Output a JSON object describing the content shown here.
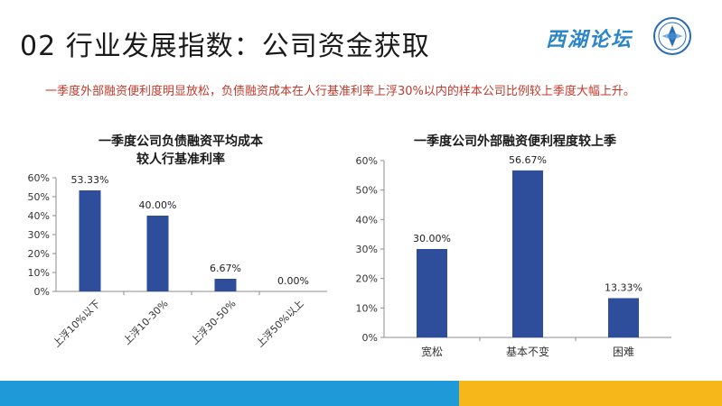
{
  "header": {
    "title": "02 行业发展指数：公司资金获取",
    "subtitle": "一季度外部融资便利度明显放松，负债融资成本在人行基准利率上浮30%以内的样本公司比例较上季度大幅上升。",
    "logo_text": "西湖论坛"
  },
  "colors": {
    "bar": "#2e4e9c",
    "footer_blue": "#1e9ad8",
    "footer_yellow": "#f5b71a",
    "subtitle": "#c0392b"
  },
  "chart_data": [
    {
      "type": "bar",
      "title_lines": [
        "一季度公司负债融资平均成本",
        "较人行基准利率"
      ],
      "categories": [
        "上浮10%以下",
        "上浮10-30%",
        "上浮30-50%",
        "上浮50%以上"
      ],
      "values": [
        53.33,
        40.0,
        6.67,
        0.0
      ],
      "value_labels": [
        "53.33%",
        "40.00%",
        "6.67%",
        "0.00%"
      ],
      "yticks": [
        "0%",
        "10%",
        "20%",
        "30%",
        "40%",
        "50%",
        "60%"
      ],
      "ylim": [
        0,
        60
      ],
      "grid": false
    },
    {
      "type": "bar",
      "title_lines": [
        "一季度公司外部融资便利程度较上季"
      ],
      "categories": [
        "宽松",
        "基本不变",
        "困难"
      ],
      "values": [
        30.0,
        56.67,
        13.33
      ],
      "value_labels": [
        "30.00%",
        "56.67%",
        "13.33%"
      ],
      "yticks": [
        "0%",
        "10%",
        "20%",
        "30%",
        "40%",
        "50%",
        "60%"
      ],
      "ylim": [
        0,
        60
      ],
      "grid": false
    }
  ]
}
